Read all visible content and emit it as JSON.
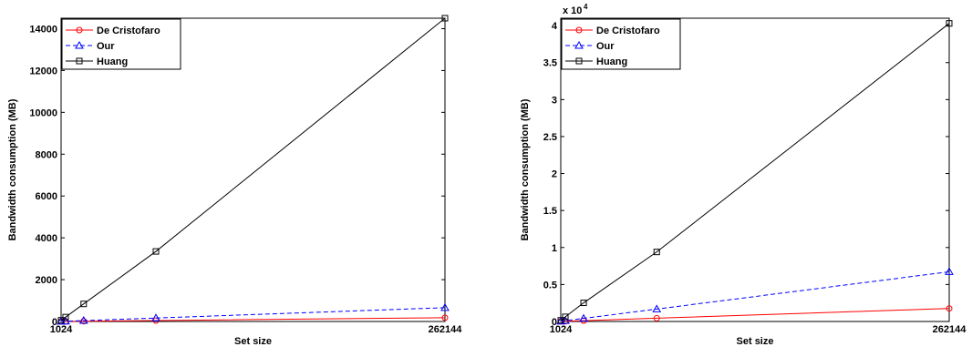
{
  "chart_data": [
    {
      "type": "line",
      "xlabel": "Set size",
      "ylabel": "Bandwidth consumption (MB)",
      "x": [
        1024,
        4096,
        16384,
        65536,
        262144
      ],
      "xticks": [
        1024,
        262144
      ],
      "xlim": [
        1024,
        262144
      ],
      "ylim": [
        0,
        14500
      ],
      "yticks": [
        0,
        2000,
        4000,
        6000,
        8000,
        10000,
        12000,
        14000
      ],
      "ytick_labels": [
        "0",
        "2000",
        "4000",
        "6000",
        "8000",
        "10000",
        "12000",
        "14000"
      ],
      "exponent_label": "",
      "legend_position": "top-left",
      "grid": false,
      "series": [
        {
          "name": "De Cristofaro",
          "color": "#ff0000",
          "dash": "solid",
          "marker": "circle",
          "values": [
            1,
            3,
            11,
            45,
            180
          ]
        },
        {
          "name": "Our",
          "color": "#0000ff",
          "dash": "dashed",
          "marker": "triangle",
          "values": [
            3,
            10,
            42,
            165,
            660
          ]
        },
        {
          "name": "Huang",
          "color": "#000000",
          "dash": "solid",
          "marker": "square",
          "values": [
            57,
            210,
            840,
            3350,
            14500
          ]
        }
      ]
    },
    {
      "type": "line",
      "xlabel": "Set size",
      "ylabel": "Bandwidth consumption (MB)",
      "x": [
        1024,
        4096,
        16384,
        65536,
        262144
      ],
      "xticks": [
        1024,
        262144
      ],
      "xlim": [
        1024,
        262144
      ],
      "ylim": [
        0,
        41000
      ],
      "yticks": [
        0,
        5000,
        10000,
        15000,
        20000,
        25000,
        30000,
        35000,
        40000
      ],
      "ytick_labels": [
        "0",
        "0.5",
        "1",
        "1.5",
        "2",
        "2.5",
        "3",
        "3.5",
        "4"
      ],
      "exponent_label": "x 10",
      "exponent_power": "4",
      "legend_position": "top-left",
      "grid": false,
      "series": [
        {
          "name": "De Cristofaro",
          "color": "#ff0000",
          "dash": "solid",
          "marker": "circle",
          "values": [
            7,
            28,
            110,
            440,
            1760
          ]
        },
        {
          "name": "Our",
          "color": "#0000ff",
          "dash": "dashed",
          "marker": "triangle",
          "values": [
            26,
            105,
            420,
            1680,
            6720
          ]
        },
        {
          "name": "Huang",
          "color": "#000000",
          "dash": "solid",
          "marker": "square",
          "values": [
            158,
            630,
            2520,
            9400,
            40300
          ]
        }
      ]
    }
  ]
}
